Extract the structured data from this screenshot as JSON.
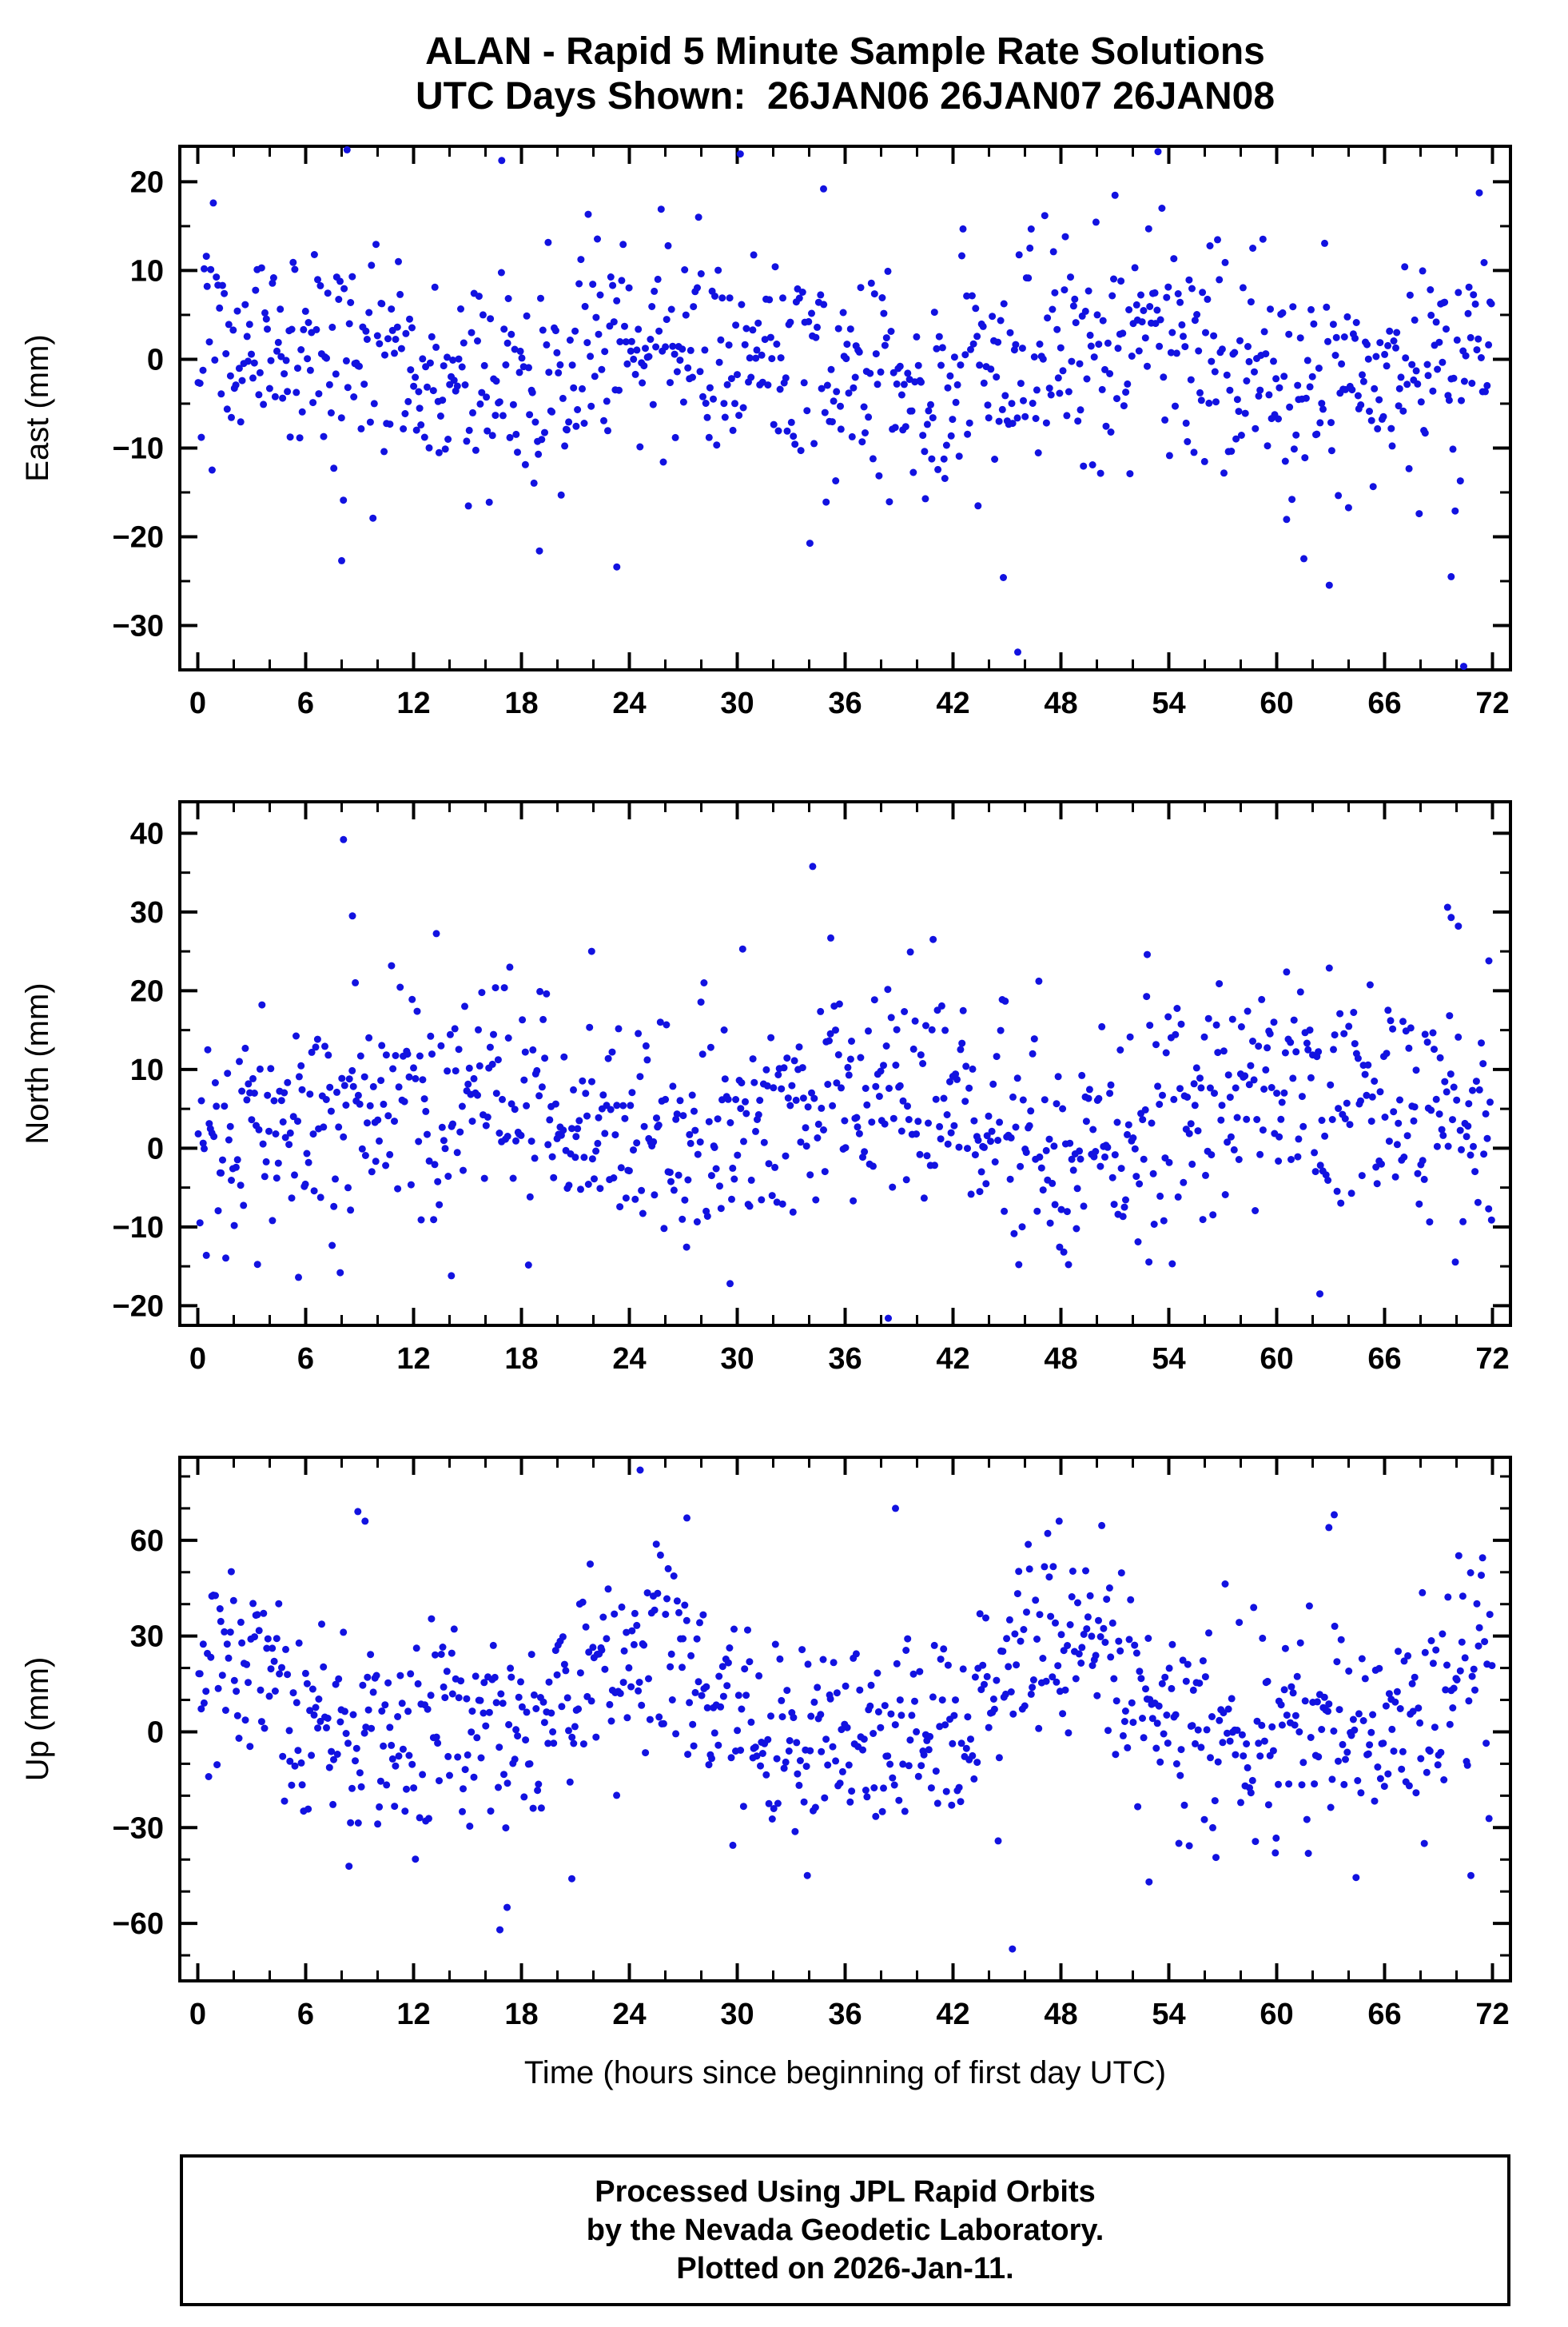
{
  "title": {
    "line1": "ALAN - Rapid 5 Minute Sample Rate Solutions",
    "line2": "UTC Days Shown:  26JAN06 26JAN07 26JAN08"
  },
  "footer": {
    "lines": [
      "Processed Using JPL Rapid Orbits",
      "by the Nevada Geodetic Laboratory.",
      "Plotted on 2026-Jan-11."
    ]
  },
  "chart_data": [
    {
      "type": "scatter",
      "name": "east",
      "title": "ALAN - Rapid 5 Minute Sample Rate Solutions",
      "ylabel": "East (mm)",
      "xlabel": "",
      "ylim": [
        -35,
        24
      ],
      "yticks": [
        -30,
        -20,
        -10,
        0,
        10,
        20
      ],
      "y_minor_step": 5,
      "xlim": [
        -1,
        73
      ],
      "xticks": [
        0,
        6,
        12,
        18,
        24,
        30,
        36,
        42,
        48,
        54,
        60,
        66,
        72
      ],
      "x_minor_step": 2,
      "grid": false,
      "legend": "none",
      "marker_color": "#1212e0",
      "marker_radius": 4.5,
      "generator": {
        "comment": "approx 860 five-minute GPS solutions over 72 h; scatter centered near 0 mm, sd ~6 mm, mild diurnal signal, heavy tails",
        "n": 860,
        "seed": 101,
        "mean": -0.3,
        "std": 6.3,
        "diurnal_amp": 3,
        "diurnal_phase": 3,
        "tail_prob": 0.02,
        "tail_std": 12
      },
      "outliers": [
        [
          8.3,
          23.6
        ],
        [
          53.4,
          23.4
        ],
        [
          16.9,
          22.4
        ],
        [
          34.8,
          19.2
        ],
        [
          8.0,
          -22.7
        ],
        [
          19.0,
          -21.6
        ],
        [
          23.3,
          -23.4
        ],
        [
          44.8,
          -24.6
        ],
        [
          45.6,
          -33.0
        ],
        [
          69.7,
          -24.5
        ],
        [
          70.4,
          -34.6
        ]
      ]
    },
    {
      "type": "scatter",
      "name": "north",
      "ylabel": "North (mm)",
      "xlabel": "",
      "ylim": [
        -22.5,
        44
      ],
      "yticks": [
        -20,
        -10,
        0,
        10,
        20,
        30,
        40
      ],
      "y_minor_step": 5,
      "xlim": [
        -1,
        73
      ],
      "xticks": [
        0,
        6,
        12,
        18,
        24,
        30,
        36,
        42,
        48,
        54,
        60,
        66,
        72
      ],
      "x_minor_step": 2,
      "grid": false,
      "legend": "none",
      "marker_color": "#1212e0",
      "marker_radius": 4.5,
      "generator": {
        "comment": "scatter centered near +5 mm, sd ~7 mm, mild diurnal signal, heavy tails",
        "n": 860,
        "seed": 202,
        "mean": 4.5,
        "std": 7,
        "diurnal_amp": 3.5,
        "diurnal_phase": 16,
        "tail_prob": 0.02,
        "tail_std": 12
      },
      "outliers": [
        [
          8.1,
          39.2
        ],
        [
          8.6,
          29.5
        ],
        [
          21.9,
          25.0
        ],
        [
          30.3,
          25.3
        ],
        [
          35.2,
          26.7
        ],
        [
          52.8,
          24.6
        ],
        [
          69.5,
          30.6
        ],
        [
          69.7,
          29.3
        ],
        [
          70.1,
          28.2
        ],
        [
          71.8,
          23.8
        ],
        [
          5.6,
          -16.4
        ],
        [
          14.1,
          -16.2
        ],
        [
          29.6,
          -17.2
        ],
        [
          38.4,
          -21.6
        ],
        [
          62.4,
          -18.5
        ]
      ]
    },
    {
      "type": "scatter",
      "name": "up",
      "ylabel": "Up (mm)",
      "xlabel": "Time (hours since beginning of first day UTC)",
      "ylim": [
        -78,
        86
      ],
      "yticks": [
        -60,
        -30,
        0,
        30,
        60
      ],
      "y_minor_step": 10,
      "xlim": [
        -1,
        73
      ],
      "xticks": [
        0,
        6,
        12,
        18,
        24,
        30,
        36,
        42,
        48,
        54,
        60,
        66,
        72
      ],
      "x_minor_step": 2,
      "grid": false,
      "legend": "none",
      "marker_color": "#1212e0",
      "marker_radius": 4.5,
      "generator": {
        "comment": "vertical component: centered near +8 mm, sd ~16 mm, strong diurnal wander, heavy tails to ±70 mm",
        "n": 860,
        "seed": 303,
        "mean": 7,
        "std": 16,
        "diurnal_amp": 12,
        "diurnal_phase": 6,
        "diurnal_amp2": 6,
        "diurnal_phase2": 2,
        "tail_prob": 0.035,
        "tail_std": 28
      },
      "outliers": [
        [
          24.6,
          82
        ],
        [
          8.9,
          69
        ],
        [
          9.3,
          66
        ],
        [
          27.2,
          67
        ],
        [
          38.8,
          70
        ],
        [
          47.9,
          66
        ],
        [
          63.2,
          68
        ],
        [
          62.9,
          64
        ],
        [
          16.8,
          -62
        ],
        [
          17.2,
          -55
        ],
        [
          45.3,
          -68
        ],
        [
          52.9,
          -47
        ],
        [
          70.8,
          -45
        ],
        [
          20.8,
          -46
        ],
        [
          33.9,
          -45
        ]
      ]
    }
  ]
}
